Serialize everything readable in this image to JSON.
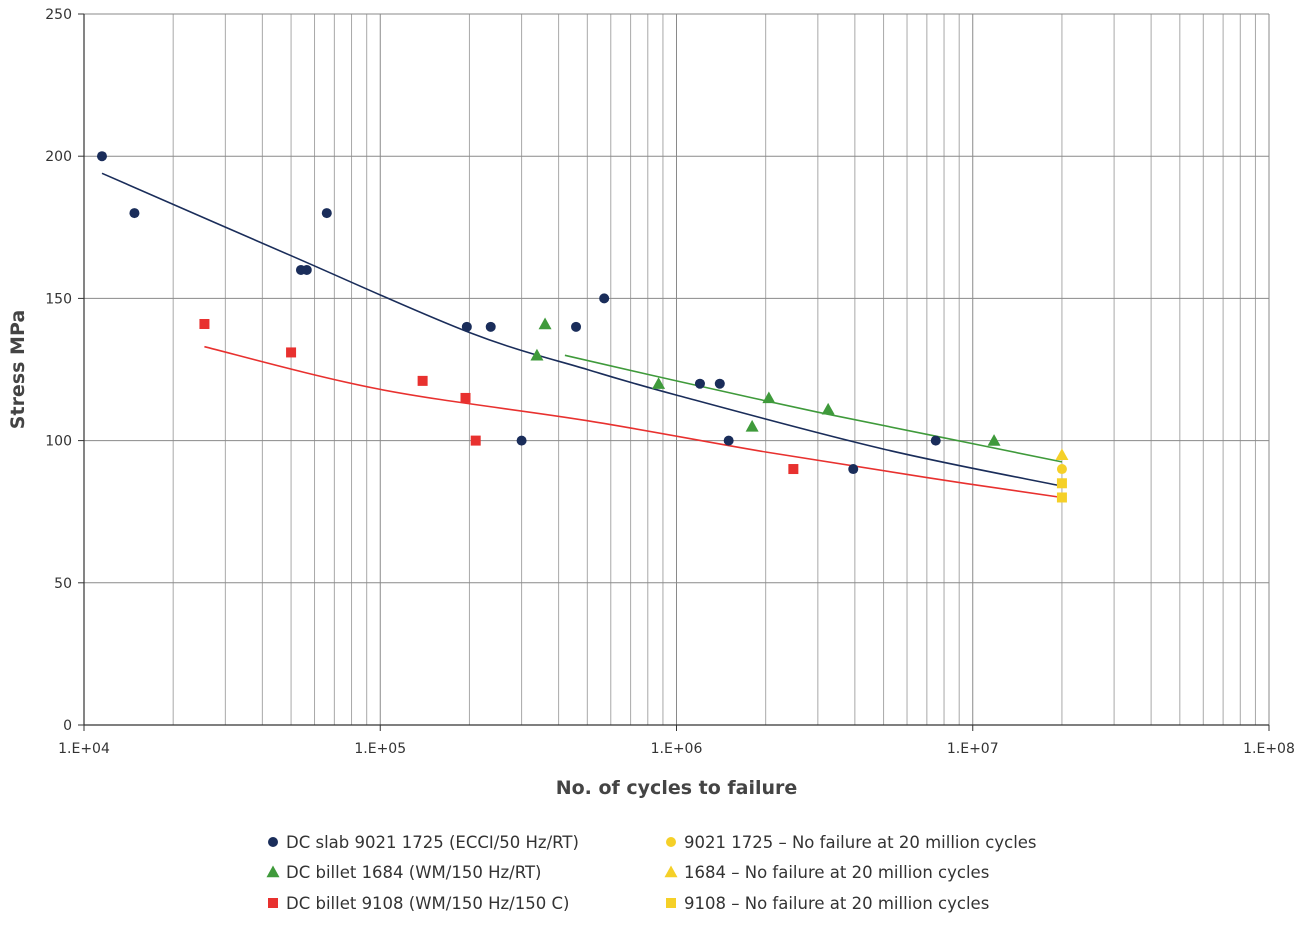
{
  "chart_data": {
    "type": "scatter",
    "xlabel": "No. of cycles to failure",
    "ylabel": "Stress MPa",
    "x_scale": "log",
    "xlim": [
      10000,
      100000000
    ],
    "ylim": [
      0,
      250
    ],
    "x_tick_values": [
      10000,
      100000,
      1000000,
      10000000,
      100000000
    ],
    "x_tick_labels": [
      "1.E+04",
      "1.E+05",
      "1.E+06",
      "1.E+07",
      "1.E+08"
    ],
    "y_ticks": [
      0,
      50,
      100,
      150,
      200,
      250
    ],
    "grid": true,
    "legend_position": "bottom",
    "series": [
      {
        "name": "DC slab 9021 1725 (ECCI/50 Hz/RT)",
        "marker": "circle",
        "color": "#1a2d5a",
        "points": [
          [
            11500,
            200
          ],
          [
            14800,
            180
          ],
          [
            54000,
            160
          ],
          [
            56500,
            160
          ],
          [
            66000,
            180
          ],
          [
            196000,
            140
          ],
          [
            236000,
            140
          ],
          [
            300000,
            100
          ],
          [
            458000,
            140
          ],
          [
            570000,
            150
          ],
          [
            1200000,
            120
          ],
          [
            1400000,
            120
          ],
          [
            1500000,
            100
          ],
          [
            3950000,
            90
          ],
          [
            7500000,
            100
          ]
        ]
      },
      {
        "name": "DC billet 1684 (WM/150 Hz/RT)",
        "marker": "triangle",
        "color": "#3f9a3b",
        "points": [
          [
            338000,
            130
          ],
          [
            360000,
            141
          ],
          [
            870000,
            120
          ],
          [
            1800000,
            105
          ],
          [
            2050000,
            115
          ],
          [
            3250000,
            111
          ],
          [
            11800000,
            100
          ]
        ]
      },
      {
        "name": "DC billet 9108 (WM/150 Hz/150 C)",
        "marker": "square",
        "color": "#e8312f",
        "points": [
          [
            25500,
            141
          ],
          [
            50000,
            131
          ],
          [
            139000,
            121
          ],
          [
            194000,
            115
          ],
          [
            210000,
            100
          ],
          [
            2480000,
            90
          ]
        ]
      },
      {
        "name": "9021 1725 – No failure at 20 million cycles",
        "marker": "circle",
        "color": "#f5d028",
        "points": [
          [
            20000000,
            90
          ]
        ]
      },
      {
        "name": "1684 – No failure at 20 million cycles",
        "marker": "triangle",
        "color": "#f5d028",
        "points": [
          [
            20000000,
            95
          ]
        ]
      },
      {
        "name": "9108 – No failure at 20 million cycles",
        "marker": "square",
        "color": "#f5d028",
        "points": [
          [
            20000000,
            85
          ],
          [
            20000000,
            80
          ]
        ]
      }
    ],
    "trend_lines": [
      {
        "series": "DC slab 9021 1725 (ECCI/50 Hz/RT)",
        "color": "#1a2d5a",
        "points": [
          [
            11500,
            194
          ],
          [
            50000,
            165
          ],
          [
            200000,
            138
          ],
          [
            500000,
            125
          ],
          [
            1000000,
            116
          ],
          [
            5000000,
            97
          ],
          [
            20000000,
            84
          ]
        ]
      },
      {
        "series": "DC billet 1684 (WM/150 Hz/RT)",
        "color": "#3f9a3b",
        "points": [
          [
            420000,
            130
          ],
          [
            1000000,
            121
          ],
          [
            3000000,
            110
          ],
          [
            8000000,
            101
          ],
          [
            20000000,
            92.5
          ]
        ]
      },
      {
        "series": "DC billet 9108 (WM/150 Hz/150 C)",
        "color": "#e8312f",
        "points": [
          [
            25500,
            133
          ],
          [
            100000,
            118
          ],
          [
            500000,
            107
          ],
          [
            2000000,
            96
          ],
          [
            7000000,
            87
          ],
          [
            20000000,
            80
          ]
        ]
      }
    ]
  }
}
